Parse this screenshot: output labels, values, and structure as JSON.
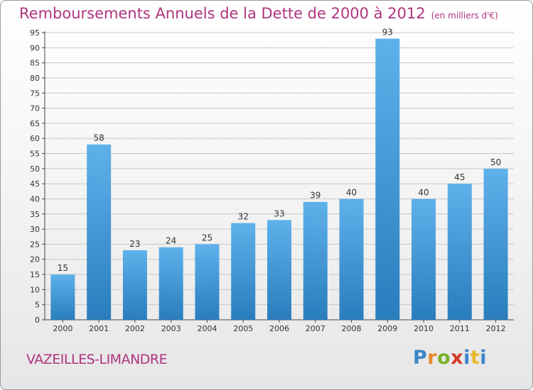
{
  "header": {
    "title": "Remboursements Annuels de la Dette de 2000 à 2012",
    "unit": "(en milliers d'€)"
  },
  "footer": {
    "commune": "VAZEILLES-LIMANDRE",
    "logo_text": "Proxiti"
  },
  "colors": {
    "title": "#b0347e",
    "bar_light": "#5eb1ea",
    "bar_dark": "#2a7dbd",
    "grid": "#c8c8c8"
  },
  "chart_data": {
    "type": "bar",
    "title": "Remboursements Annuels de la Dette de 2000 à 2012",
    "subtitle": "(en milliers d'€)",
    "xlabel": "",
    "ylabel": "",
    "categories": [
      "2000",
      "2001",
      "2002",
      "2003",
      "2004",
      "2005",
      "2006",
      "2007",
      "2008",
      "2009",
      "2010",
      "2011",
      "2012"
    ],
    "values": [
      15,
      58,
      23,
      24,
      25,
      32,
      33,
      39,
      40,
      93,
      40,
      45,
      50
    ],
    "ylim": [
      0,
      95
    ],
    "yticks": [
      0,
      5,
      10,
      15,
      20,
      25,
      30,
      35,
      40,
      45,
      50,
      55,
      60,
      65,
      70,
      75,
      80,
      85,
      90,
      95
    ],
    "grid": true,
    "data_labels": true
  }
}
